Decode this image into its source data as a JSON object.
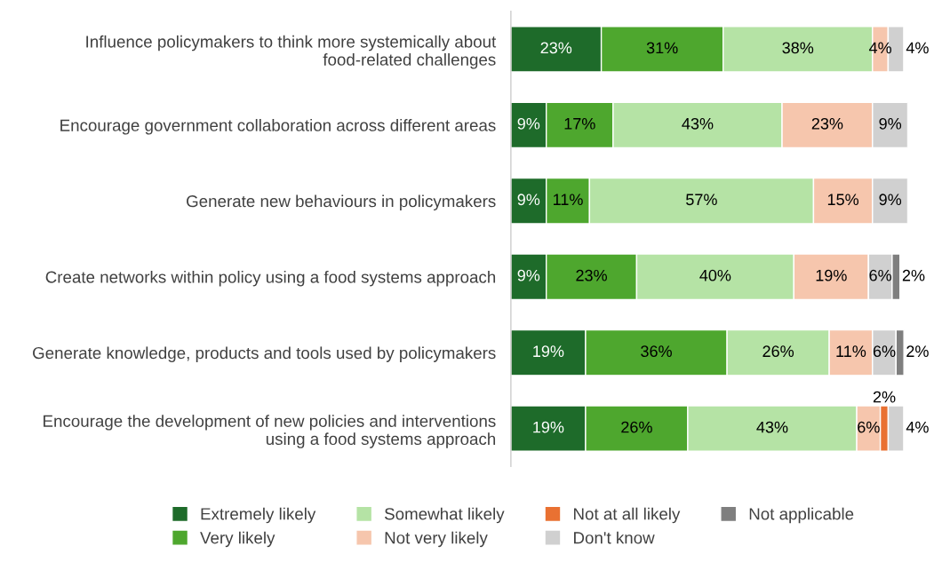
{
  "chart_data": {
    "type": "bar",
    "orientation": "horizontal",
    "stacked": true,
    "legend": "bottom",
    "grid": false,
    "categories": [
      "Influence policymakers to think more systemically about food-related challenges",
      "Encourage government collaboration across different areas",
      "Generate new behaviours in policymakers",
      "Create networks within policy using a food systems approach",
      "Generate knowledge, products and tools used by policymakers",
      "Encourage the development of new policies and interventions using a food systems approach"
    ],
    "series": [
      {
        "name": "Extremely likely",
        "color": "#1e6b2a",
        "values": [
          23,
          9,
          9,
          9,
          19,
          19
        ],
        "value_labels": [
          "23%",
          "9%",
          "9%",
          "9%",
          "19%",
          "19%"
        ]
      },
      {
        "name": "Very likely",
        "color": "#4ea72e",
        "values": [
          31,
          17,
          11,
          23,
          36,
          26
        ],
        "value_labels": [
          "31%",
          "17%",
          "11%",
          "23%",
          "36%",
          "26%"
        ]
      },
      {
        "name": "Somewhat likely",
        "color": "#b5e3a5",
        "values": [
          38,
          43,
          57,
          40,
          26,
          43
        ],
        "value_labels": [
          "38%",
          "43%",
          "57%",
          "40%",
          "26%",
          "43%"
        ]
      },
      {
        "name": "Not very likely",
        "color": "#f6c6ad",
        "values": [
          4,
          23,
          15,
          19,
          11,
          6
        ],
        "value_labels": [
          "4%",
          "23%",
          "15%",
          "19%",
          "11%",
          "6%"
        ]
      },
      {
        "name": "Not at all likely",
        "color": "#e97132",
        "values": [
          null,
          null,
          null,
          null,
          null,
          2
        ],
        "value_labels": [
          null,
          null,
          null,
          null,
          null,
          "2%"
        ]
      },
      {
        "name": "Don't know",
        "color": "#d0d0d0",
        "values": [
          4,
          9,
          9,
          6,
          6,
          4
        ],
        "value_labels": [
          "4%",
          "9%",
          "9%",
          "6%",
          "6%",
          "4%"
        ]
      },
      {
        "name": "Not applicable",
        "color": "#7f7f7f",
        "values": [
          null,
          null,
          null,
          2,
          2,
          null
        ],
        "value_labels": [
          null,
          null,
          null,
          "2%",
          "2%",
          null
        ]
      }
    ]
  }
}
